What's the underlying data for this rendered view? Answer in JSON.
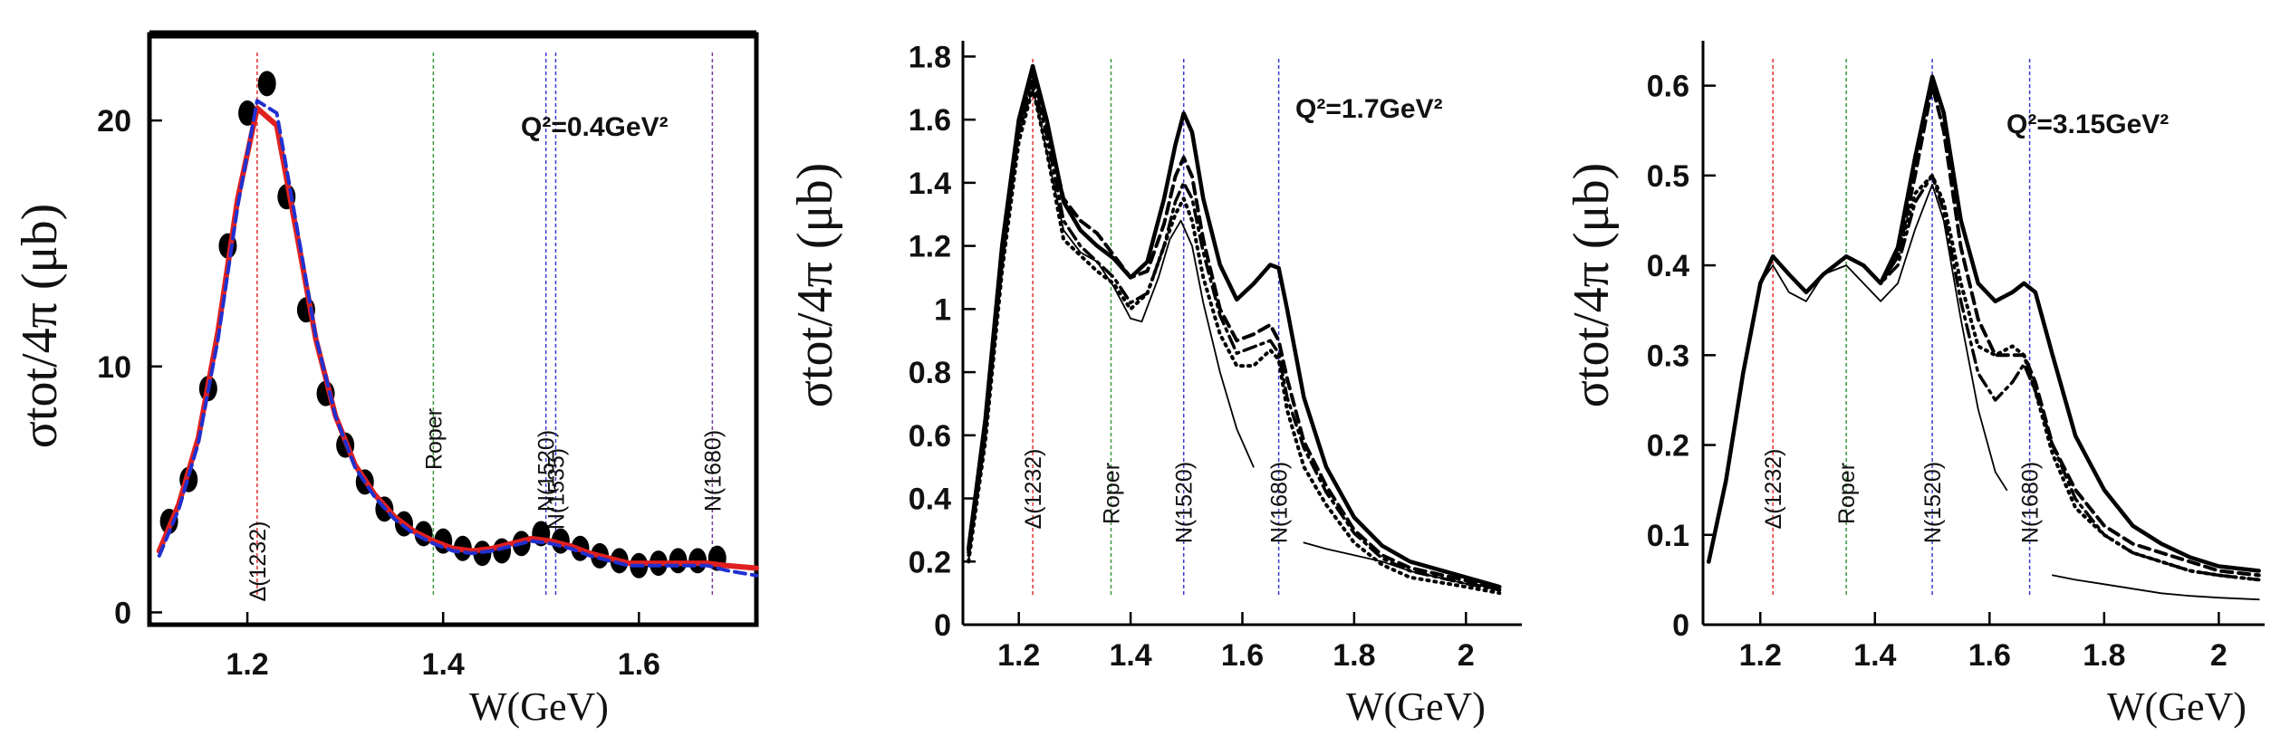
{
  "chart_data": [
    {
      "type": "scatter",
      "title": "",
      "annotation": "Q²=0.4GeV²",
      "xlabel": "W(GeV)",
      "ylabel": "σtot/4π (μb)",
      "xlim": [
        1.1,
        1.72
      ],
      "ylim": [
        -0.5,
        23.5
      ],
      "xticks": [
        1.2,
        1.4,
        1.6
      ],
      "yticks": [
        0,
        10,
        20
      ],
      "xtick_labels": [
        "1.2",
        "1.4",
        "1.6"
      ],
      "ytick_labels": [
        "0",
        "10",
        "20"
      ],
      "resonances": [
        {
          "name": "Δ(1232)",
          "w": 1.21,
          "color": "#e03030"
        },
        {
          "name": "Roper",
          "w": 1.39,
          "color": "#3a9a3a"
        },
        {
          "name": "N(1520)",
          "w": 1.505,
          "color": "#3a3ad0"
        },
        {
          "name": "N(1535)",
          "w": 1.515,
          "color": "#3a3ad0"
        },
        {
          "name": "N(1680)",
          "w": 1.675,
          "color": "#7a3a9a"
        }
      ],
      "series": [
        {
          "name": "data",
          "style": "points",
          "color": "#000000",
          "x": [
            1.12,
            1.14,
            1.16,
            1.18,
            1.2,
            1.22,
            1.24,
            1.26,
            1.28,
            1.3,
            1.32,
            1.34,
            1.36,
            1.38,
            1.4,
            1.42,
            1.44,
            1.46,
            1.48,
            1.5,
            1.52,
            1.54,
            1.56,
            1.58,
            1.6,
            1.62,
            1.64,
            1.66,
            1.68
          ],
          "y": [
            3.7,
            5.4,
            9.1,
            14.9,
            20.3,
            21.5,
            16.9,
            12.3,
            8.9,
            6.8,
            5.3,
            4.2,
            3.6,
            3.2,
            2.9,
            2.6,
            2.4,
            2.5,
            2.8,
            3.2,
            2.9,
            2.6,
            2.3,
            2.1,
            1.9,
            2.0,
            2.1,
            2.1,
            2.2
          ]
        },
        {
          "name": "fit 1",
          "style": "solid",
          "color": "#e02020",
          "x": [
            1.11,
            1.13,
            1.15,
            1.17,
            1.19,
            1.21,
            1.23,
            1.25,
            1.27,
            1.29,
            1.31,
            1.33,
            1.35,
            1.37,
            1.39,
            1.41,
            1.43,
            1.45,
            1.47,
            1.49,
            1.51,
            1.53,
            1.55,
            1.57,
            1.59,
            1.61,
            1.63,
            1.65,
            1.67,
            1.69,
            1.72
          ],
          "y": [
            2.5,
            4.4,
            7.1,
            11.4,
            16.8,
            20.5,
            19.8,
            15.5,
            11.1,
            8.0,
            6.0,
            4.8,
            3.9,
            3.3,
            2.9,
            2.6,
            2.5,
            2.6,
            2.8,
            3.0,
            2.9,
            2.7,
            2.4,
            2.2,
            2.0,
            2.0,
            2.0,
            2.0,
            2.0,
            1.9,
            1.8
          ]
        },
        {
          "name": "fit 2",
          "style": "dashed",
          "color": "#2030d0",
          "x": [
            1.11,
            1.13,
            1.15,
            1.17,
            1.19,
            1.21,
            1.23,
            1.25,
            1.27,
            1.29,
            1.31,
            1.33,
            1.35,
            1.37,
            1.39,
            1.41,
            1.43,
            1.45,
            1.47,
            1.49,
            1.51,
            1.53,
            1.55,
            1.57,
            1.59,
            1.61,
            1.63,
            1.65,
            1.67,
            1.69,
            1.72
          ],
          "y": [
            2.3,
            4.2,
            6.9,
            11.1,
            16.5,
            20.8,
            20.3,
            15.8,
            11.2,
            8.0,
            5.9,
            4.7,
            3.8,
            3.2,
            2.8,
            2.5,
            2.4,
            2.5,
            2.7,
            2.9,
            2.8,
            2.6,
            2.3,
            2.1,
            1.9,
            1.9,
            1.9,
            1.9,
            1.9,
            1.7,
            1.5
          ]
        }
      ]
    },
    {
      "type": "line",
      "title": "",
      "annotation": "Q²=1.7GeV²",
      "xlabel": "W(GeV)",
      "ylabel": "σtot/4π (μb)",
      "xlim": [
        1.1,
        2.1
      ],
      "ylim": [
        0,
        1.85
      ],
      "xticks": [
        1.2,
        1.4,
        1.6,
        1.8,
        2.0
      ],
      "yticks": [
        0,
        0.2,
        0.4,
        0.6,
        0.8,
        1.0,
        1.2,
        1.4,
        1.6,
        1.8
      ],
      "xtick_labels": [
        "1.2",
        "1.4",
        "1.6",
        "1.8",
        "2"
      ],
      "ytick_labels": [
        "0",
        "0.2",
        "0.4",
        "0.6",
        "0.8",
        "1",
        "1.2",
        "1.4",
        "1.6",
        "1.8"
      ],
      "resonances": [
        {
          "name": "Δ(1232)",
          "w": 1.225,
          "color": "#e03030"
        },
        {
          "name": "Roper",
          "w": 1.365,
          "color": "#3a9a3a"
        },
        {
          "name": "N(1520)",
          "w": 1.495,
          "color": "#3a3ad0"
        },
        {
          "name": "N(1680)",
          "w": 1.665,
          "color": "#3a3ad0"
        }
      ],
      "series": [
        {
          "name": "thick solid",
          "style": "solid-thick",
          "x": [
            1.11,
            1.14,
            1.17,
            1.2,
            1.225,
            1.25,
            1.28,
            1.31,
            1.34,
            1.37,
            1.4,
            1.43,
            1.46,
            1.48,
            1.495,
            1.51,
            1.53,
            1.56,
            1.59,
            1.62,
            1.65,
            1.665,
            1.68,
            1.71,
            1.75,
            1.8,
            1.85,
            1.9,
            2.0,
            2.06
          ],
          "y": [
            0.24,
            0.65,
            1.2,
            1.6,
            1.77,
            1.6,
            1.34,
            1.25,
            1.2,
            1.16,
            1.1,
            1.15,
            1.35,
            1.52,
            1.62,
            1.56,
            1.35,
            1.14,
            1.03,
            1.08,
            1.14,
            1.13,
            1.0,
            0.72,
            0.5,
            0.34,
            0.25,
            0.2,
            0.15,
            0.12
          ]
        },
        {
          "name": "dashed",
          "style": "dashed",
          "x": [
            1.11,
            1.14,
            1.17,
            1.2,
            1.225,
            1.25,
            1.28,
            1.31,
            1.34,
            1.37,
            1.4,
            1.43,
            1.46,
            1.48,
            1.495,
            1.51,
            1.53,
            1.56,
            1.59,
            1.62,
            1.65,
            1.665,
            1.68,
            1.71,
            1.75,
            1.8,
            1.85,
            1.9,
            2.0,
            2.06
          ],
          "y": [
            0.23,
            0.63,
            1.18,
            1.58,
            1.74,
            1.58,
            1.35,
            1.28,
            1.24,
            1.17,
            1.1,
            1.12,
            1.27,
            1.42,
            1.48,
            1.42,
            1.22,
            1.0,
            0.9,
            0.92,
            0.95,
            0.9,
            0.78,
            0.58,
            0.44,
            0.3,
            0.22,
            0.18,
            0.14,
            0.11
          ]
        },
        {
          "name": "dash-dot",
          "style": "dashdot",
          "x": [
            1.11,
            1.14,
            1.17,
            1.2,
            1.225,
            1.25,
            1.28,
            1.31,
            1.34,
            1.37,
            1.4,
            1.43,
            1.46,
            1.48,
            1.495,
            1.51,
            1.53,
            1.56,
            1.59,
            1.62,
            1.65,
            1.665,
            1.68,
            1.71,
            1.75,
            1.8,
            1.85,
            1.9,
            2.0,
            2.06
          ],
          "y": [
            0.22,
            0.6,
            1.15,
            1.56,
            1.72,
            1.55,
            1.28,
            1.2,
            1.15,
            1.1,
            1.02,
            1.05,
            1.2,
            1.34,
            1.4,
            1.35,
            1.18,
            0.98,
            0.86,
            0.88,
            0.9,
            0.86,
            0.72,
            0.56,
            0.42,
            0.29,
            0.21,
            0.17,
            0.13,
            0.11
          ]
        },
        {
          "name": "dotted",
          "style": "dotted",
          "x": [
            1.11,
            1.14,
            1.17,
            1.2,
            1.225,
            1.25,
            1.28,
            1.31,
            1.34,
            1.37,
            1.4,
            1.43,
            1.46,
            1.48,
            1.495,
            1.51,
            1.53,
            1.56,
            1.59,
            1.62,
            1.65,
            1.665,
            1.68,
            1.71,
            1.75,
            1.8,
            1.85,
            1.9,
            2.0,
            2.06
          ],
          "y": [
            0.2,
            0.58,
            1.12,
            1.53,
            1.7,
            1.5,
            1.22,
            1.17,
            1.12,
            1.08,
            1.0,
            1.05,
            1.2,
            1.3,
            1.35,
            1.28,
            1.1,
            0.92,
            0.82,
            0.82,
            0.87,
            0.84,
            0.68,
            0.5,
            0.38,
            0.26,
            0.19,
            0.15,
            0.12,
            0.1
          ]
        },
        {
          "name": "thin solid",
          "style": "solid-thin",
          "x": [
            1.11,
            1.14,
            1.17,
            1.2,
            1.225,
            1.25,
            1.28,
            1.31,
            1.34,
            1.37,
            1.4,
            1.42,
            1.45,
            1.47,
            1.49,
            1.51,
            1.53,
            1.56,
            1.59,
            1.62
          ],
          "y": [
            0.2,
            0.58,
            1.12,
            1.55,
            1.7,
            1.5,
            1.25,
            1.18,
            1.15,
            1.07,
            0.97,
            0.96,
            1.1,
            1.22,
            1.28,
            1.2,
            1.02,
            0.8,
            0.62,
            0.5
          ]
        },
        {
          "name": "thin solid tail",
          "style": "solid-thin",
          "x": [
            1.71,
            1.75,
            1.8,
            1.85,
            1.9,
            1.95,
            2.0,
            2.06
          ],
          "y": [
            0.26,
            0.24,
            0.22,
            0.2,
            0.17,
            0.15,
            0.13,
            0.12
          ]
        }
      ]
    },
    {
      "type": "line",
      "title": "",
      "annotation": "Q²=3.15GeV²",
      "xlabel": "W(GeV)",
      "ylabel": "σtot/4π (μb)",
      "xlim": [
        1.1,
        2.08
      ],
      "ylim": [
        0,
        0.65
      ],
      "xticks": [
        1.2,
        1.4,
        1.6,
        1.8,
        2.0
      ],
      "yticks": [
        0,
        0.1,
        0.2,
        0.3,
        0.4,
        0.5,
        0.6
      ],
      "xtick_labels": [
        "1.2",
        "1.4",
        "1.6",
        "1.8",
        "2"
      ],
      "ytick_labels": [
        "0",
        "0.1",
        "0.2",
        "0.3",
        "0.4",
        "0.5",
        "0.6"
      ],
      "resonances": [
        {
          "name": "Δ(1232)",
          "w": 1.222,
          "color": "#e03030"
        },
        {
          "name": "Roper",
          "w": 1.35,
          "color": "#3a9a3a"
        },
        {
          "name": "N(1520)",
          "w": 1.5,
          "color": "#3a3ad0"
        },
        {
          "name": "N(1680)",
          "w": 1.67,
          "color": "#3a3ad0"
        }
      ],
      "series": [
        {
          "name": "thick solid",
          "style": "solid-thick",
          "x": [
            1.11,
            1.14,
            1.17,
            1.2,
            1.222,
            1.25,
            1.28,
            1.31,
            1.35,
            1.38,
            1.41,
            1.44,
            1.47,
            1.5,
            1.52,
            1.55,
            1.58,
            1.61,
            1.64,
            1.66,
            1.68,
            1.71,
            1.75,
            1.8,
            1.85,
            1.9,
            1.95,
            2.0,
            2.07
          ],
          "y": [
            0.07,
            0.16,
            0.28,
            0.38,
            0.41,
            0.39,
            0.37,
            0.39,
            0.41,
            0.4,
            0.38,
            0.42,
            0.52,
            0.61,
            0.57,
            0.45,
            0.38,
            0.36,
            0.37,
            0.38,
            0.37,
            0.3,
            0.21,
            0.15,
            0.11,
            0.09,
            0.075,
            0.065,
            0.06
          ]
        },
        {
          "name": "dashed",
          "style": "dashed",
          "x": [
            1.11,
            1.14,
            1.17,
            1.2,
            1.222,
            1.25,
            1.28,
            1.31,
            1.35,
            1.38,
            1.41,
            1.44,
            1.47,
            1.5,
            1.52,
            1.55,
            1.58,
            1.61,
            1.64,
            1.66,
            1.68,
            1.71,
            1.75,
            1.8,
            1.85,
            1.9,
            1.95,
            2.0,
            2.07
          ],
          "y": [
            0.07,
            0.16,
            0.28,
            0.38,
            0.41,
            0.39,
            0.37,
            0.39,
            0.41,
            0.4,
            0.38,
            0.41,
            0.5,
            0.6,
            0.55,
            0.42,
            0.34,
            0.3,
            0.3,
            0.3,
            0.27,
            0.2,
            0.15,
            0.11,
            0.09,
            0.08,
            0.07,
            0.06,
            0.055
          ]
        },
        {
          "name": "dash-dot",
          "style": "dashdot",
          "x": [
            1.11,
            1.14,
            1.17,
            1.2,
            1.222,
            1.25,
            1.28,
            1.31,
            1.35,
            1.38,
            1.41,
            1.44,
            1.47,
            1.5,
            1.52,
            1.55,
            1.58,
            1.61,
            1.64,
            1.66,
            1.68,
            1.71,
            1.75,
            1.8,
            1.85,
            1.9,
            1.95,
            2.0,
            2.07
          ],
          "y": [
            0.07,
            0.16,
            0.28,
            0.38,
            0.41,
            0.39,
            0.37,
            0.39,
            0.41,
            0.4,
            0.38,
            0.4,
            0.47,
            0.5,
            0.46,
            0.36,
            0.28,
            0.25,
            0.27,
            0.29,
            0.26,
            0.2,
            0.14,
            0.1,
            0.08,
            0.07,
            0.06,
            0.055,
            0.05
          ]
        },
        {
          "name": "dotted",
          "style": "dotted",
          "x": [
            1.11,
            1.14,
            1.17,
            1.2,
            1.222,
            1.25,
            1.28,
            1.31,
            1.35,
            1.38,
            1.41,
            1.44,
            1.47,
            1.5,
            1.52,
            1.55,
            1.58,
            1.61,
            1.64,
            1.66,
            1.68,
            1.71,
            1.75,
            1.8,
            1.85,
            1.9,
            1.95,
            2.0,
            2.07
          ],
          "y": [
            0.07,
            0.16,
            0.28,
            0.38,
            0.41,
            0.39,
            0.37,
            0.39,
            0.41,
            0.4,
            0.38,
            0.41,
            0.48,
            0.5,
            0.47,
            0.38,
            0.31,
            0.3,
            0.31,
            0.3,
            0.26,
            0.19,
            0.13,
            0.1,
            0.08,
            0.07,
            0.06,
            0.055,
            0.05
          ]
        },
        {
          "name": "thin solid",
          "style": "solid-thin",
          "x": [
            1.11,
            1.14,
            1.17,
            1.2,
            1.222,
            1.25,
            1.28,
            1.31,
            1.35,
            1.38,
            1.41,
            1.44,
            1.47,
            1.5,
            1.52,
            1.55,
            1.58,
            1.61,
            1.63
          ],
          "y": [
            0.07,
            0.16,
            0.28,
            0.38,
            0.4,
            0.37,
            0.36,
            0.39,
            0.4,
            0.38,
            0.36,
            0.38,
            0.44,
            0.49,
            0.45,
            0.34,
            0.24,
            0.17,
            0.15
          ]
        },
        {
          "name": "thin solid tail",
          "style": "solid-thin",
          "x": [
            1.71,
            1.75,
            1.8,
            1.85,
            1.9,
            1.95,
            2.0,
            2.07
          ],
          "y": [
            0.055,
            0.05,
            0.045,
            0.04,
            0.035,
            0.032,
            0.03,
            0.028
          ]
        }
      ]
    }
  ]
}
